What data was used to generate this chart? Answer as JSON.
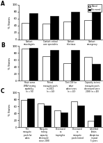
{
  "panel_A": {
    "label": "A",
    "categories": [
      "Contact\nneurologists",
      "Contact critical\ncare specialists",
      "Contact\ninfectious\ndisease\nspecialists",
      "Contact\nemergency\ndepartments"
    ],
    "need": [
      48,
      45,
      52,
      55
    ],
    "no_need": [
      75,
      68,
      80,
      82
    ]
  },
  "panel_B": {
    "label": "B",
    "categories": [
      "Have some\nWNV testing\ncapability\n(n = 50)",
      "Tested\nmosquito pools\nin 2012\n(n = 46)",
      "Test CSF for\nother\narboviruses\n(n = 43)",
      "Capacity to test\nmosquito pools\ndecreased since\n2008 (n = 40)"
    ],
    "need": [
      92,
      70,
      50,
      68
    ],
    "no_need": [
      95,
      88,
      88,
      48
    ]
  },
  "panel_C": {
    "label": "C",
    "categories": [
      "Test\nmosquito\npools for\narbos",
      "Mosquito\ntesting\ncapacity\ndecreased\nsince 2008",
      "Decreased\nno.\ntrapnights",
      "Decreased\nno.\nmosquito\npools tested",
      "Identified\nAedes\nalbopictus\nin past\n5 years"
    ],
    "need": [
      78,
      68,
      48,
      75,
      18
    ],
    "no_need": [
      82,
      62,
      42,
      62,
      35
    ]
  },
  "bar_colors": {
    "need": "white",
    "no_need": "black"
  },
  "bar_edgecolor": "black",
  "ylabel": "% States",
  "ylim": [
    0,
    100
  ],
  "yticks": [
    0,
    20,
    40,
    60,
    80,
    100
  ],
  "legend_labels": [
    "Need",
    "No need"
  ],
  "background_color": "white",
  "bar_width": 0.38,
  "tick_fontsize": 2.8,
  "label_fontsize": 2.0,
  "ylabel_fontsize": 2.8
}
